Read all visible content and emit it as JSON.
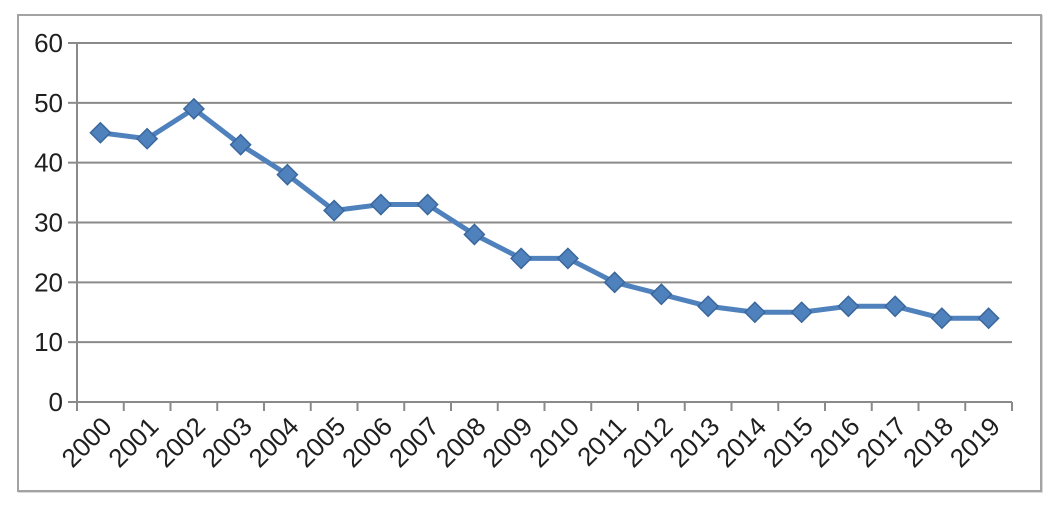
{
  "chart_data": {
    "type": "line",
    "title": "",
    "xlabel": "",
    "ylabel": "",
    "categories": [
      "2000",
      "2001",
      "2002",
      "2003",
      "2004",
      "2005",
      "2006",
      "2007",
      "2008",
      "2009",
      "2010",
      "2011",
      "2012",
      "2013",
      "2014",
      "2015",
      "2016",
      "2017",
      "2018",
      "2019"
    ],
    "values": [
      45,
      44,
      49,
      43,
      38,
      32,
      33,
      33,
      28,
      24,
      24,
      20,
      18,
      16,
      15,
      15,
      16,
      16,
      14,
      14
    ],
    "ylim": [
      0,
      60
    ],
    "yticks": [
      0,
      10,
      20,
      30,
      40,
      50,
      60
    ],
    "grid": true,
    "legend": "none",
    "marker": "diamond",
    "colors": {
      "series_line": "#4F81BD",
      "marker_fill": "#4F81BD",
      "marker_edge": "#3A679C",
      "gridline": "#8a8a8a",
      "axis_line": "#8a8a8a",
      "tick_label": "#1f1f1f",
      "frame_border": "#a3a3a3",
      "background": "#ffffff"
    }
  }
}
